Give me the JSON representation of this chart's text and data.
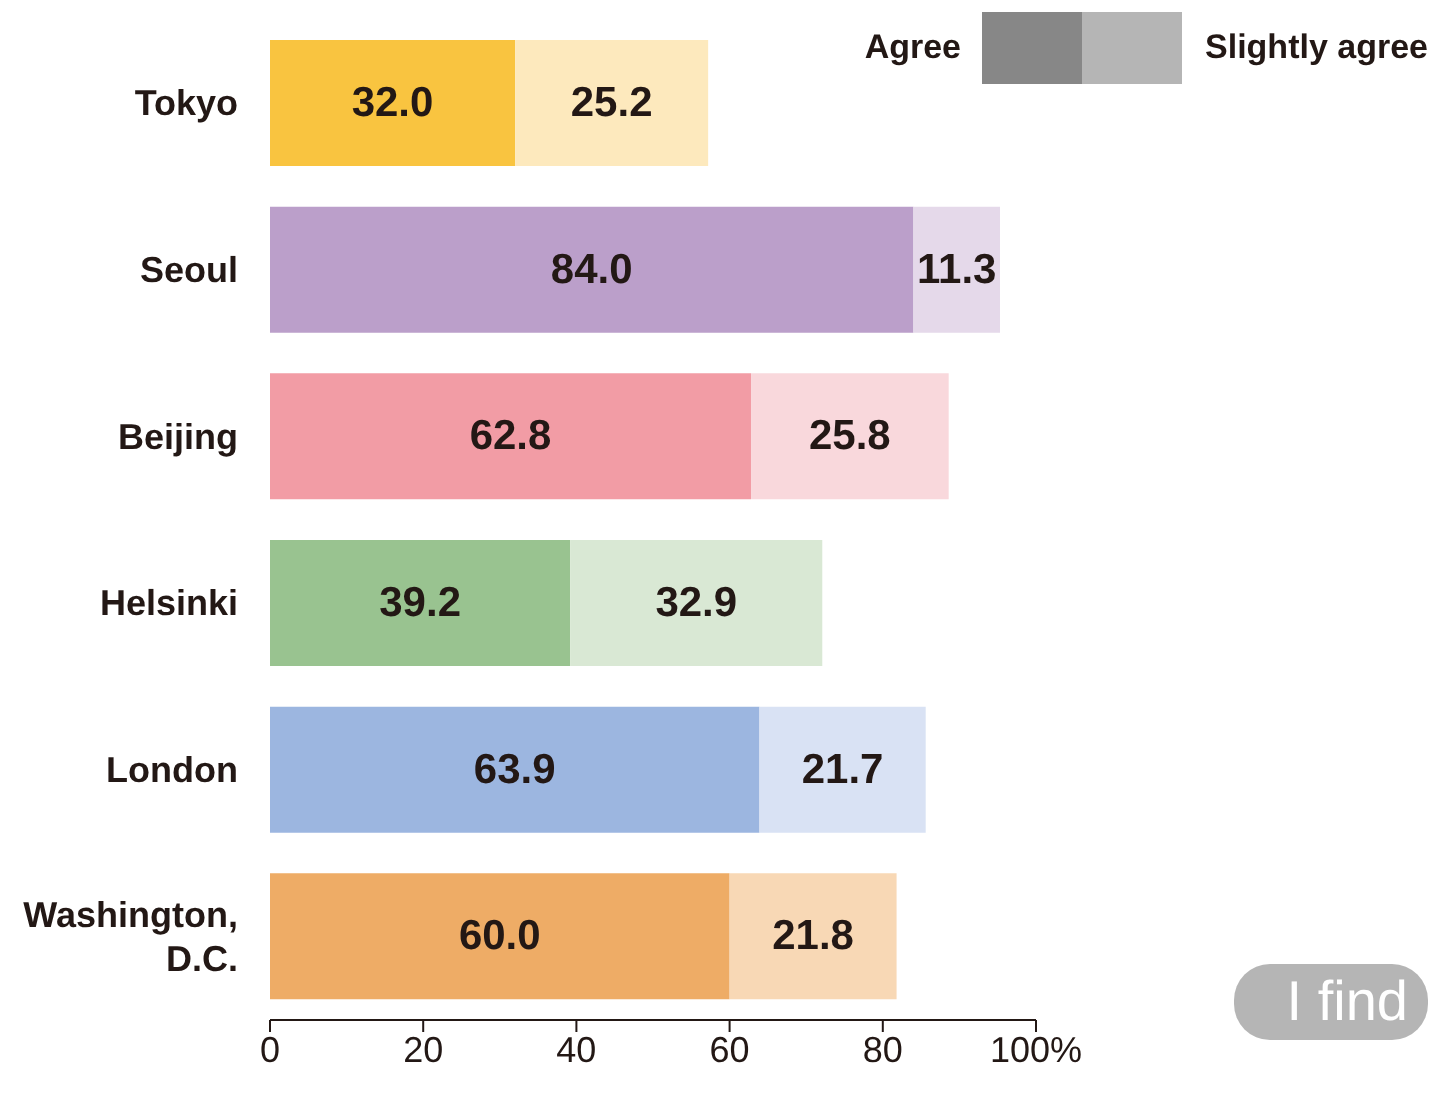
{
  "chart_data": {
    "type": "bar",
    "orientation": "horizontal",
    "stacked": true,
    "categories": [
      "Tokyo",
      "Seoul",
      "Beijing",
      "Helsinki",
      "London",
      "Washington, D.C."
    ],
    "series": [
      {
        "name": "Agree",
        "color": "#878787",
        "values": [
          32.0,
          84.0,
          62.8,
          39.2,
          63.9,
          60.0
        ],
        "value_labels": [
          "32.0",
          "84.0",
          "62.8",
          "39.2",
          "63.9",
          "60.0"
        ],
        "colors": [
          "#f9c440",
          "#bb9fca",
          "#f29ca5",
          "#99c390",
          "#9cb6e0",
          "#eeac66"
        ]
      },
      {
        "name": "Slightly agree",
        "color": "#b5b5b5",
        "values": [
          25.2,
          11.3,
          25.8,
          32.9,
          21.7,
          21.8
        ],
        "value_labels": [
          "25.2",
          "11.3",
          "25.8",
          "32.9",
          "21.7",
          "21.8"
        ],
        "colors": [
          "#fde9bd",
          "#e5d9ea",
          "#f9d8dc",
          "#d9e8d4",
          "#d9e2f4",
          "#f8d8b5"
        ]
      }
    ],
    "xlim": [
      0,
      100
    ],
    "xticks": [
      0,
      20,
      40,
      60,
      80,
      {
        "value": 100,
        "label": "100%"
      }
    ],
    "grid": false,
    "legend": "top right",
    "annotations": [
      "I find"
    ]
  }
}
